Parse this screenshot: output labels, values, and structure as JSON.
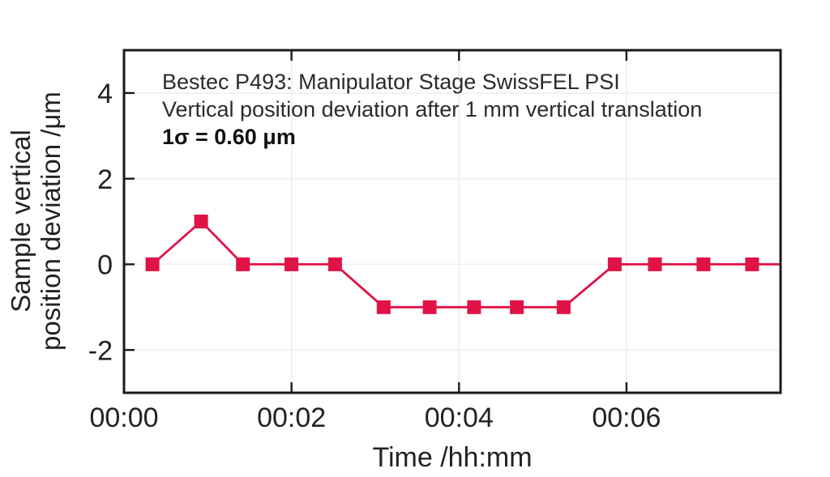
{
  "figure": {
    "annotation_line1": "Bestec P493: Manipulator Stage SwissFEL PSI",
    "annotation_line2": "Vertical position deviation after 1 mm vertical translation",
    "annotation_line3": "1σ = 0.60 μm",
    "y_axis_label_line1": "Sample vertical",
    "y_axis_label_line2": "position deviation /μm",
    "x_axis_label": "Time /hh:mm"
  },
  "chart_data": {
    "type": "line",
    "title": "Bestec P493: Manipulator Stage SwissFEL PSI",
    "subtitle": "Vertical position deviation after 1 mm vertical translation",
    "annotation": "1σ = 0.60 μm",
    "xlabel": "Time /hh:mm",
    "ylabel": "Sample vertical position deviation /μm",
    "x_unit": "minutes",
    "x": [
      0.34,
      0.92,
      1.42,
      2.0,
      2.52,
      3.1,
      3.65,
      4.18,
      4.69,
      5.25,
      5.86,
      6.34,
      6.92,
      7.5
    ],
    "y": [
      0,
      1,
      0,
      0,
      0,
      -1,
      -1,
      -1,
      -1,
      -1,
      0,
      0,
      0,
      0
    ],
    "xlim": [
      0,
      7.84
    ],
    "ylim": [
      -3,
      5
    ],
    "x_ticks": [
      0,
      2,
      4,
      6
    ],
    "x_tick_labels": [
      "00:00",
      "00:02",
      "00:04",
      "00:06"
    ],
    "y_ticks": [
      4,
      2,
      0,
      -2
    ],
    "y_tick_labels": [
      "4",
      "2",
      "0",
      "-2"
    ],
    "grid": true,
    "legend_position": "none",
    "marker": "square",
    "line_extends_to_xlim_max": true,
    "colors": {
      "series": "#e01246",
      "grid": "#ededed",
      "frame": "#1a1a1a",
      "text": "#222222"
    }
  }
}
